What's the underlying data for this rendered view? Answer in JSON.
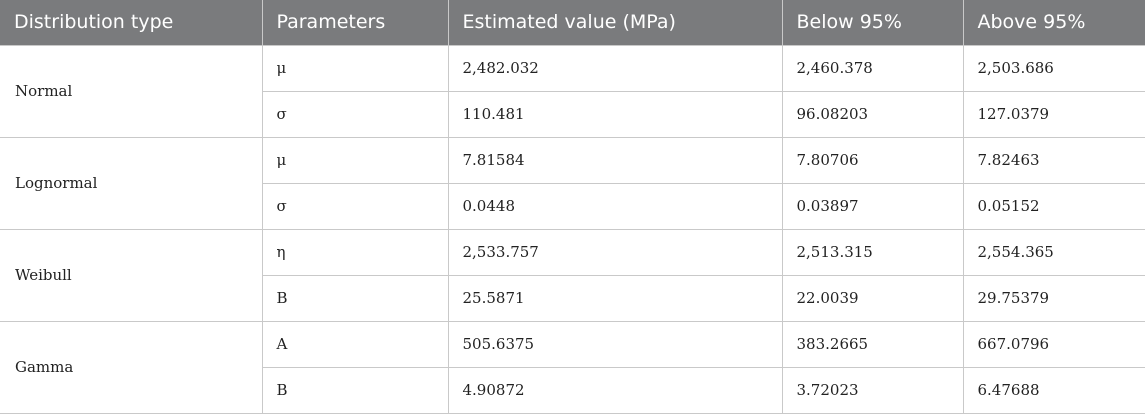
{
  "table": {
    "headers": [
      "Distribution type",
      "Parameters",
      "Estimated value (MPa)",
      "Below 95%",
      "Above 95%"
    ],
    "groups": [
      {
        "distribution": "Normal",
        "rows": [
          {
            "parameter": "μ",
            "estimated": "2,482.032",
            "below": "2,460.378",
            "above": "2,503.686"
          },
          {
            "parameter": "σ",
            "estimated": "110.481",
            "below": "96.08203",
            "above": "127.0379"
          }
        ]
      },
      {
        "distribution": "Lognormal",
        "rows": [
          {
            "parameter": "μ",
            "estimated": "7.81584",
            "below": "7.80706",
            "above": "7.82463"
          },
          {
            "parameter": "σ",
            "estimated": "0.0448",
            "below": "0.03897",
            "above": "0.05152"
          }
        ]
      },
      {
        "distribution": "Weibull",
        "rows": [
          {
            "parameter": "η",
            "estimated": "2,533.757",
            "below": "2,513.315",
            "above": "2,554.365"
          },
          {
            "parameter": "B",
            "estimated": "25.5871",
            "below": "22.0039",
            "above": "29.75379"
          }
        ]
      },
      {
        "distribution": "Gamma",
        "rows": [
          {
            "parameter": "A",
            "estimated": "505.6375",
            "below": "383.2665",
            "above": "667.0796"
          },
          {
            "parameter": "B",
            "estimated": "4.90872",
            "below": "3.72023",
            "above": "6.47688"
          }
        ]
      }
    ]
  }
}
